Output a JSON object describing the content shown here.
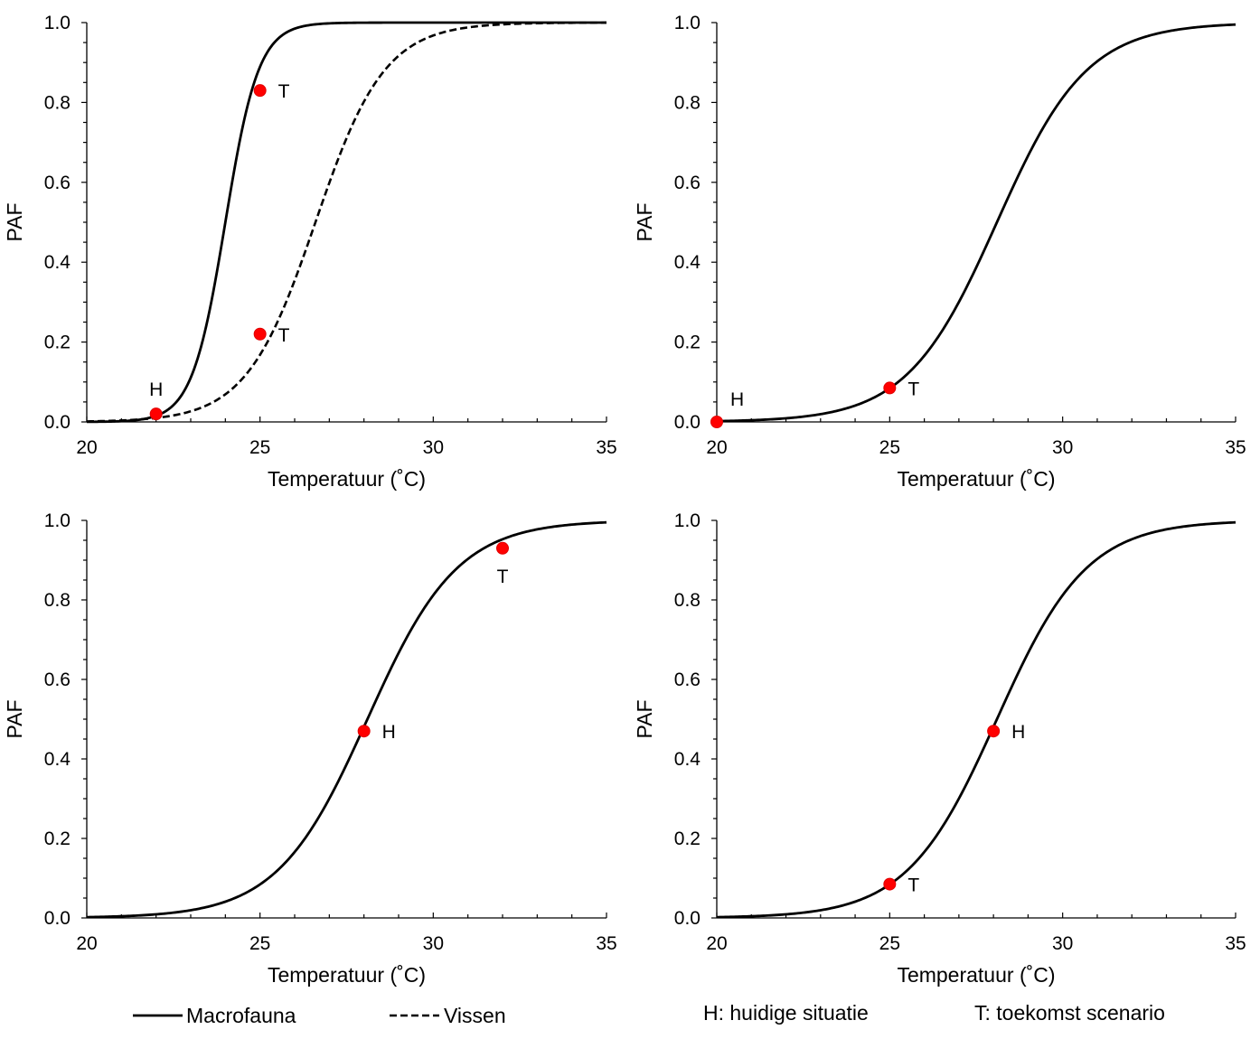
{
  "chart_data": [
    {
      "type": "line",
      "xlabel": "Temperatuur (˚C)",
      "ylabel": "PAF",
      "xlim": [
        20,
        35
      ],
      "ylim": [
        0,
        1
      ],
      "xticks": [
        "20",
        "25",
        "30",
        "35"
      ],
      "yticks": [
        "0.0",
        "0.2",
        "0.4",
        "0.6",
        "0.8",
        "1.0"
      ],
      "series": [
        {
          "name": "Macrofauna",
          "style": "solid",
          "mu": 24.0,
          "scale": 0.48,
          "points": [
            {
              "label": "H",
              "x": 22,
              "y": 0.02,
              "label_pos": "above"
            },
            {
              "label": "T",
              "x": 25,
              "y": 0.83,
              "label_pos": "right"
            }
          ]
        },
        {
          "name": "Vissen",
          "style": "dashed",
          "mu": 26.6,
          "scale": 1.0,
          "points": [
            {
              "label": "T",
              "x": 25,
              "y": 0.22,
              "label_pos": "right"
            }
          ]
        }
      ]
    },
    {
      "type": "line",
      "xlabel": "Temperatuur (˚C)",
      "ylabel": "PAF",
      "xlim": [
        20,
        35
      ],
      "ylim": [
        0,
        1
      ],
      "xticks": [
        "20",
        "25",
        "30",
        "35"
      ],
      "yticks": [
        "0.0",
        "0.2",
        "0.4",
        "0.6",
        "0.8",
        "1.0"
      ],
      "series": [
        {
          "name": "",
          "style": "solid",
          "mu": 28.1,
          "scale": 1.3,
          "points": [
            {
              "label": "H",
              "x": 20,
              "y": 0.0,
              "label_pos": "upper-right"
            },
            {
              "label": "T",
              "x": 25,
              "y": 0.085,
              "label_pos": "right"
            }
          ]
        }
      ]
    },
    {
      "type": "line",
      "xlabel": "Temperatuur (˚C)",
      "ylabel": "PAF",
      "xlim": [
        20,
        35
      ],
      "ylim": [
        0,
        1
      ],
      "xticks": [
        "20",
        "25",
        "30",
        "35"
      ],
      "yticks": [
        "0.0",
        "0.2",
        "0.4",
        "0.6",
        "0.8",
        "1.0"
      ],
      "series": [
        {
          "name": "",
          "style": "solid",
          "mu": 28.1,
          "scale": 1.3,
          "points": [
            {
              "label": "H",
              "x": 28,
              "y": 0.47,
              "label_pos": "right"
            },
            {
              "label": "T",
              "x": 32,
              "y": 0.93,
              "label_pos": "below"
            }
          ]
        }
      ]
    },
    {
      "type": "line",
      "xlabel": "Temperatuur (˚C)",
      "ylabel": "PAF",
      "xlim": [
        20,
        35
      ],
      "ylim": [
        0,
        1
      ],
      "xticks": [
        "20",
        "25",
        "30",
        "35"
      ],
      "yticks": [
        "0.0",
        "0.2",
        "0.4",
        "0.6",
        "0.8",
        "1.0"
      ],
      "series": [
        {
          "name": "",
          "style": "solid",
          "mu": 28.1,
          "scale": 1.3,
          "points": [
            {
              "label": "H",
              "x": 28,
              "y": 0.47,
              "label_pos": "right"
            },
            {
              "label": "T",
              "x": 25,
              "y": 0.085,
              "label_pos": "right"
            }
          ]
        }
      ]
    }
  ],
  "legend": {
    "macrofauna": "Macrofauna",
    "vissen": "Vissen",
    "h_note": "H: huidige situatie",
    "t_note": "T: toekomst scenario"
  },
  "colors": {
    "marker": "#ff0000",
    "line": "#000000"
  }
}
